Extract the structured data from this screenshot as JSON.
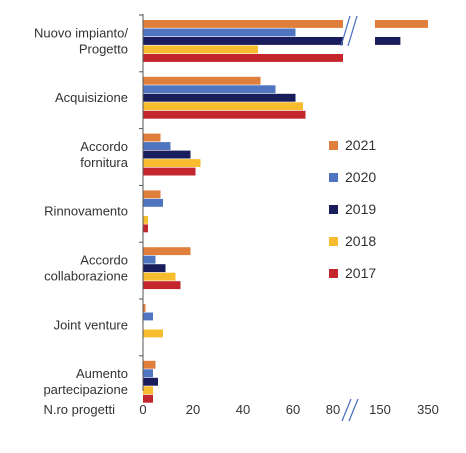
{
  "chart_data": {
    "type": "bar",
    "orientation": "horizontal",
    "categories": [
      [
        "Nuovo impianto/",
        "Progetto"
      ],
      [
        "Acquisizione"
      ],
      [
        "Accordo",
        "fornitura"
      ],
      [
        "Rinnovamento"
      ],
      [
        "Accordo",
        "collaborazione"
      ],
      [
        "Joint venture"
      ],
      [
        "Aumento",
        "partecipazione"
      ]
    ],
    "series": [
      {
        "name": "2021",
        "color": "#E07E3C",
        "values": [
          350,
          47,
          7,
          7,
          19,
          1,
          5
        ]
      },
      {
        "name": "2020",
        "color": "#4F74C0",
        "values": [
          61,
          53,
          11,
          8,
          5,
          4,
          4
        ]
      },
      {
        "name": "2019",
        "color": "#1A1D5C",
        "values": [
          235,
          61,
          19,
          0,
          9,
          0,
          6
        ]
      },
      {
        "name": "2018",
        "color": "#F7BD2E",
        "values": [
          46,
          64,
          23,
          2,
          13,
          8,
          4
        ]
      },
      {
        "name": "2017",
        "color": "#C4262E",
        "values": [
          80,
          65,
          21,
          2,
          15,
          0,
          4
        ]
      }
    ],
    "xlabel": "N.ro progetti",
    "xticks": [
      "0",
      "20",
      "40",
      "60",
      "80",
      "150",
      "350"
    ],
    "xaxis_break": true,
    "legend_position": "right",
    "grid": false
  }
}
